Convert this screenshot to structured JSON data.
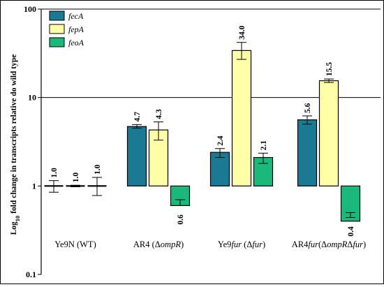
{
  "chart_data": {
    "type": "bar",
    "title": "",
    "ylabel": "Log10 fold change in transcripts relative do wild type",
    "ylabel_parts": {
      "pre": "Log",
      "sub": "10",
      "post": " fold change in transcripts relative do wild type"
    },
    "yscale": "log",
    "ylim": [
      0.1,
      100
    ],
    "yticks": [
      {
        "value": 0.1,
        "label": "0.1"
      },
      {
        "value": 1,
        "label": "1"
      },
      {
        "value": 10,
        "label": "10"
      },
      {
        "value": 100,
        "label": "100"
      }
    ],
    "grid": "horizontal major lines at 10 and 100",
    "legend_position": "top-left",
    "categories": [
      {
        "id": "ye9n",
        "parts": [
          {
            "t": "Ye9N (WT)",
            "i": false
          }
        ]
      },
      {
        "id": "ar4",
        "parts": [
          {
            "t": "AR4 (Δ",
            "i": false
          },
          {
            "t": "ompR",
            "i": true
          },
          {
            "t": ")",
            "i": false
          }
        ]
      },
      {
        "id": "ye9fur",
        "parts": [
          {
            "t": "Ye9",
            "i": false
          },
          {
            "t": "fur",
            "i": true
          },
          {
            "t": " (Δ",
            "i": false
          },
          {
            "t": "fur",
            "i": true
          },
          {
            "t": ")",
            "i": false
          }
        ]
      },
      {
        "id": "ar4fur",
        "parts": [
          {
            "t": "AR4",
            "i": false
          },
          {
            "t": "fur",
            "i": true
          },
          {
            "t": "(Δ",
            "i": false
          },
          {
            "t": "ompR",
            "i": true
          },
          {
            "t": "Δ",
            "i": false
          },
          {
            "t": "fur",
            "i": true
          },
          {
            "t": ")",
            "i": false
          }
        ]
      }
    ],
    "series": [
      {
        "name": "fecA",
        "color": "#1a7a93",
        "values": [
          1.0,
          4.7,
          2.4,
          5.6
        ],
        "labels": [
          "1.0",
          "4.7",
          "2.4",
          "5.6"
        ],
        "err_low": [
          0.85,
          4.5,
          2.1,
          5.0
        ],
        "err_high": [
          1.15,
          4.95,
          2.65,
          6.2
        ]
      },
      {
        "name": "fepA",
        "color": "#ffffa8",
        "values": [
          1.0,
          4.3,
          34.0,
          15.5
        ],
        "labels": [
          "1.0",
          "4.3",
          "34.0",
          "15.5"
        ],
        "err_low": [
          0.98,
          3.3,
          27.0,
          14.8
        ],
        "err_high": [
          1.02,
          5.3,
          42.0,
          16.2
        ]
      },
      {
        "name": "feoA",
        "color": "#1ab87a",
        "values": [
          1.0,
          0.6,
          2.1,
          0.4
        ],
        "labels": [
          "1.0",
          "0.6",
          "2.1",
          "0.4"
        ],
        "err_low": [
          0.78,
          0.6,
          1.8,
          0.44
        ],
        "err_high": [
          1.25,
          0.7,
          2.35,
          0.5
        ]
      }
    ]
  }
}
